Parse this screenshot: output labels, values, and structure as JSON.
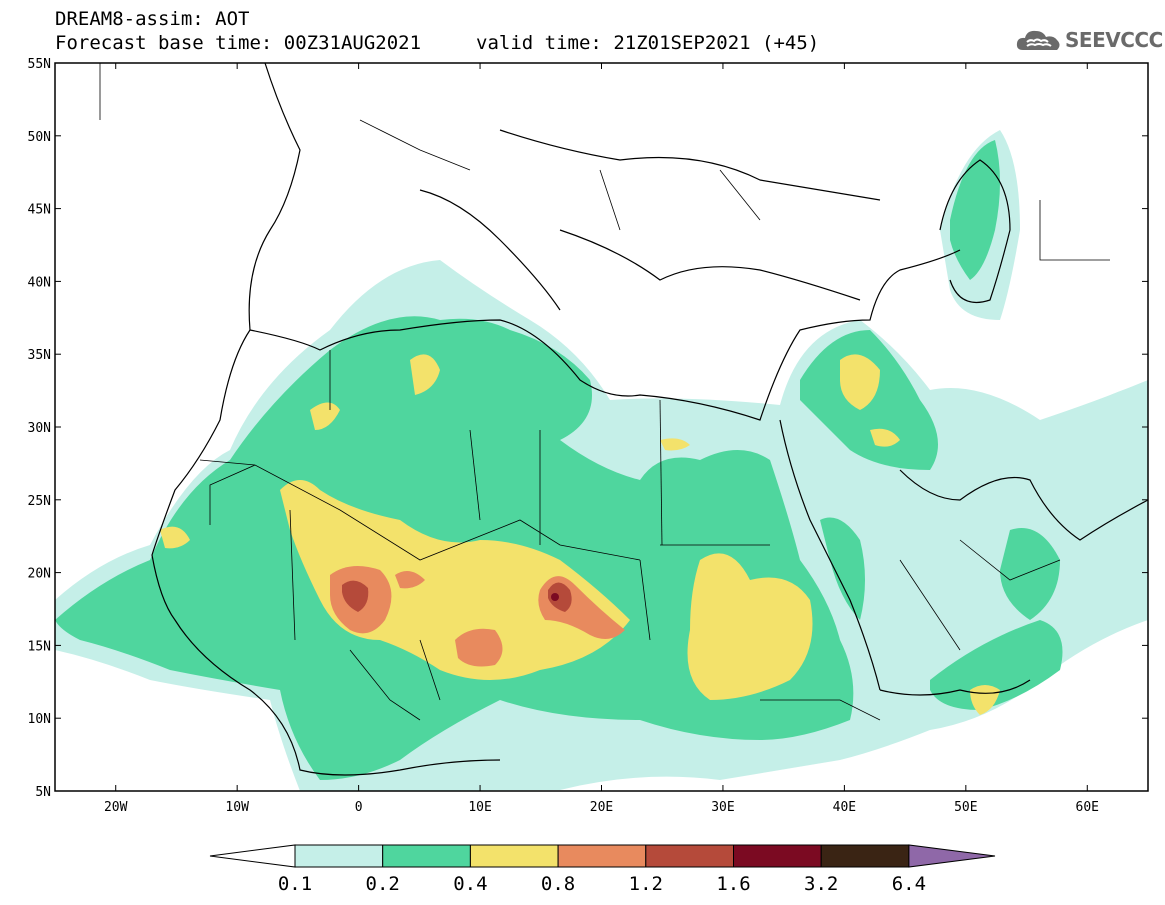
{
  "header": {
    "title": "DREAM8-assim: AOT",
    "base_time_label": "Forecast base time: 00Z31AUG2021",
    "valid_time_label": "valid time: 21Z01SEP2021 (+45)"
  },
  "logo": {
    "text": "SEEVCCC",
    "icon": "cloud-icon"
  },
  "map": {
    "lon_range": [
      -25,
      65
    ],
    "lat_range": [
      5,
      55
    ],
    "lat_ticks": [
      "55N",
      "50N",
      "45N",
      "40N",
      "35N",
      "30N",
      "25N",
      "20N",
      "15N",
      "10N",
      "5N"
    ],
    "lon_ticks": [
      "20W",
      "10W",
      "0",
      "10E",
      "20E",
      "30E",
      "40E",
      "50E",
      "60E"
    ]
  },
  "legend": {
    "labels": [
      "0.1",
      "0.2",
      "0.4",
      "0.8",
      "1.2",
      "1.6",
      "3.2",
      "6.4"
    ],
    "colors": [
      "#ffffff",
      "#c5efe8",
      "#4fd69e",
      "#f3e26b",
      "#e88a5e",
      "#b54a3a",
      "#7b0a22",
      "#3a2414",
      "#8f68a8"
    ]
  }
}
